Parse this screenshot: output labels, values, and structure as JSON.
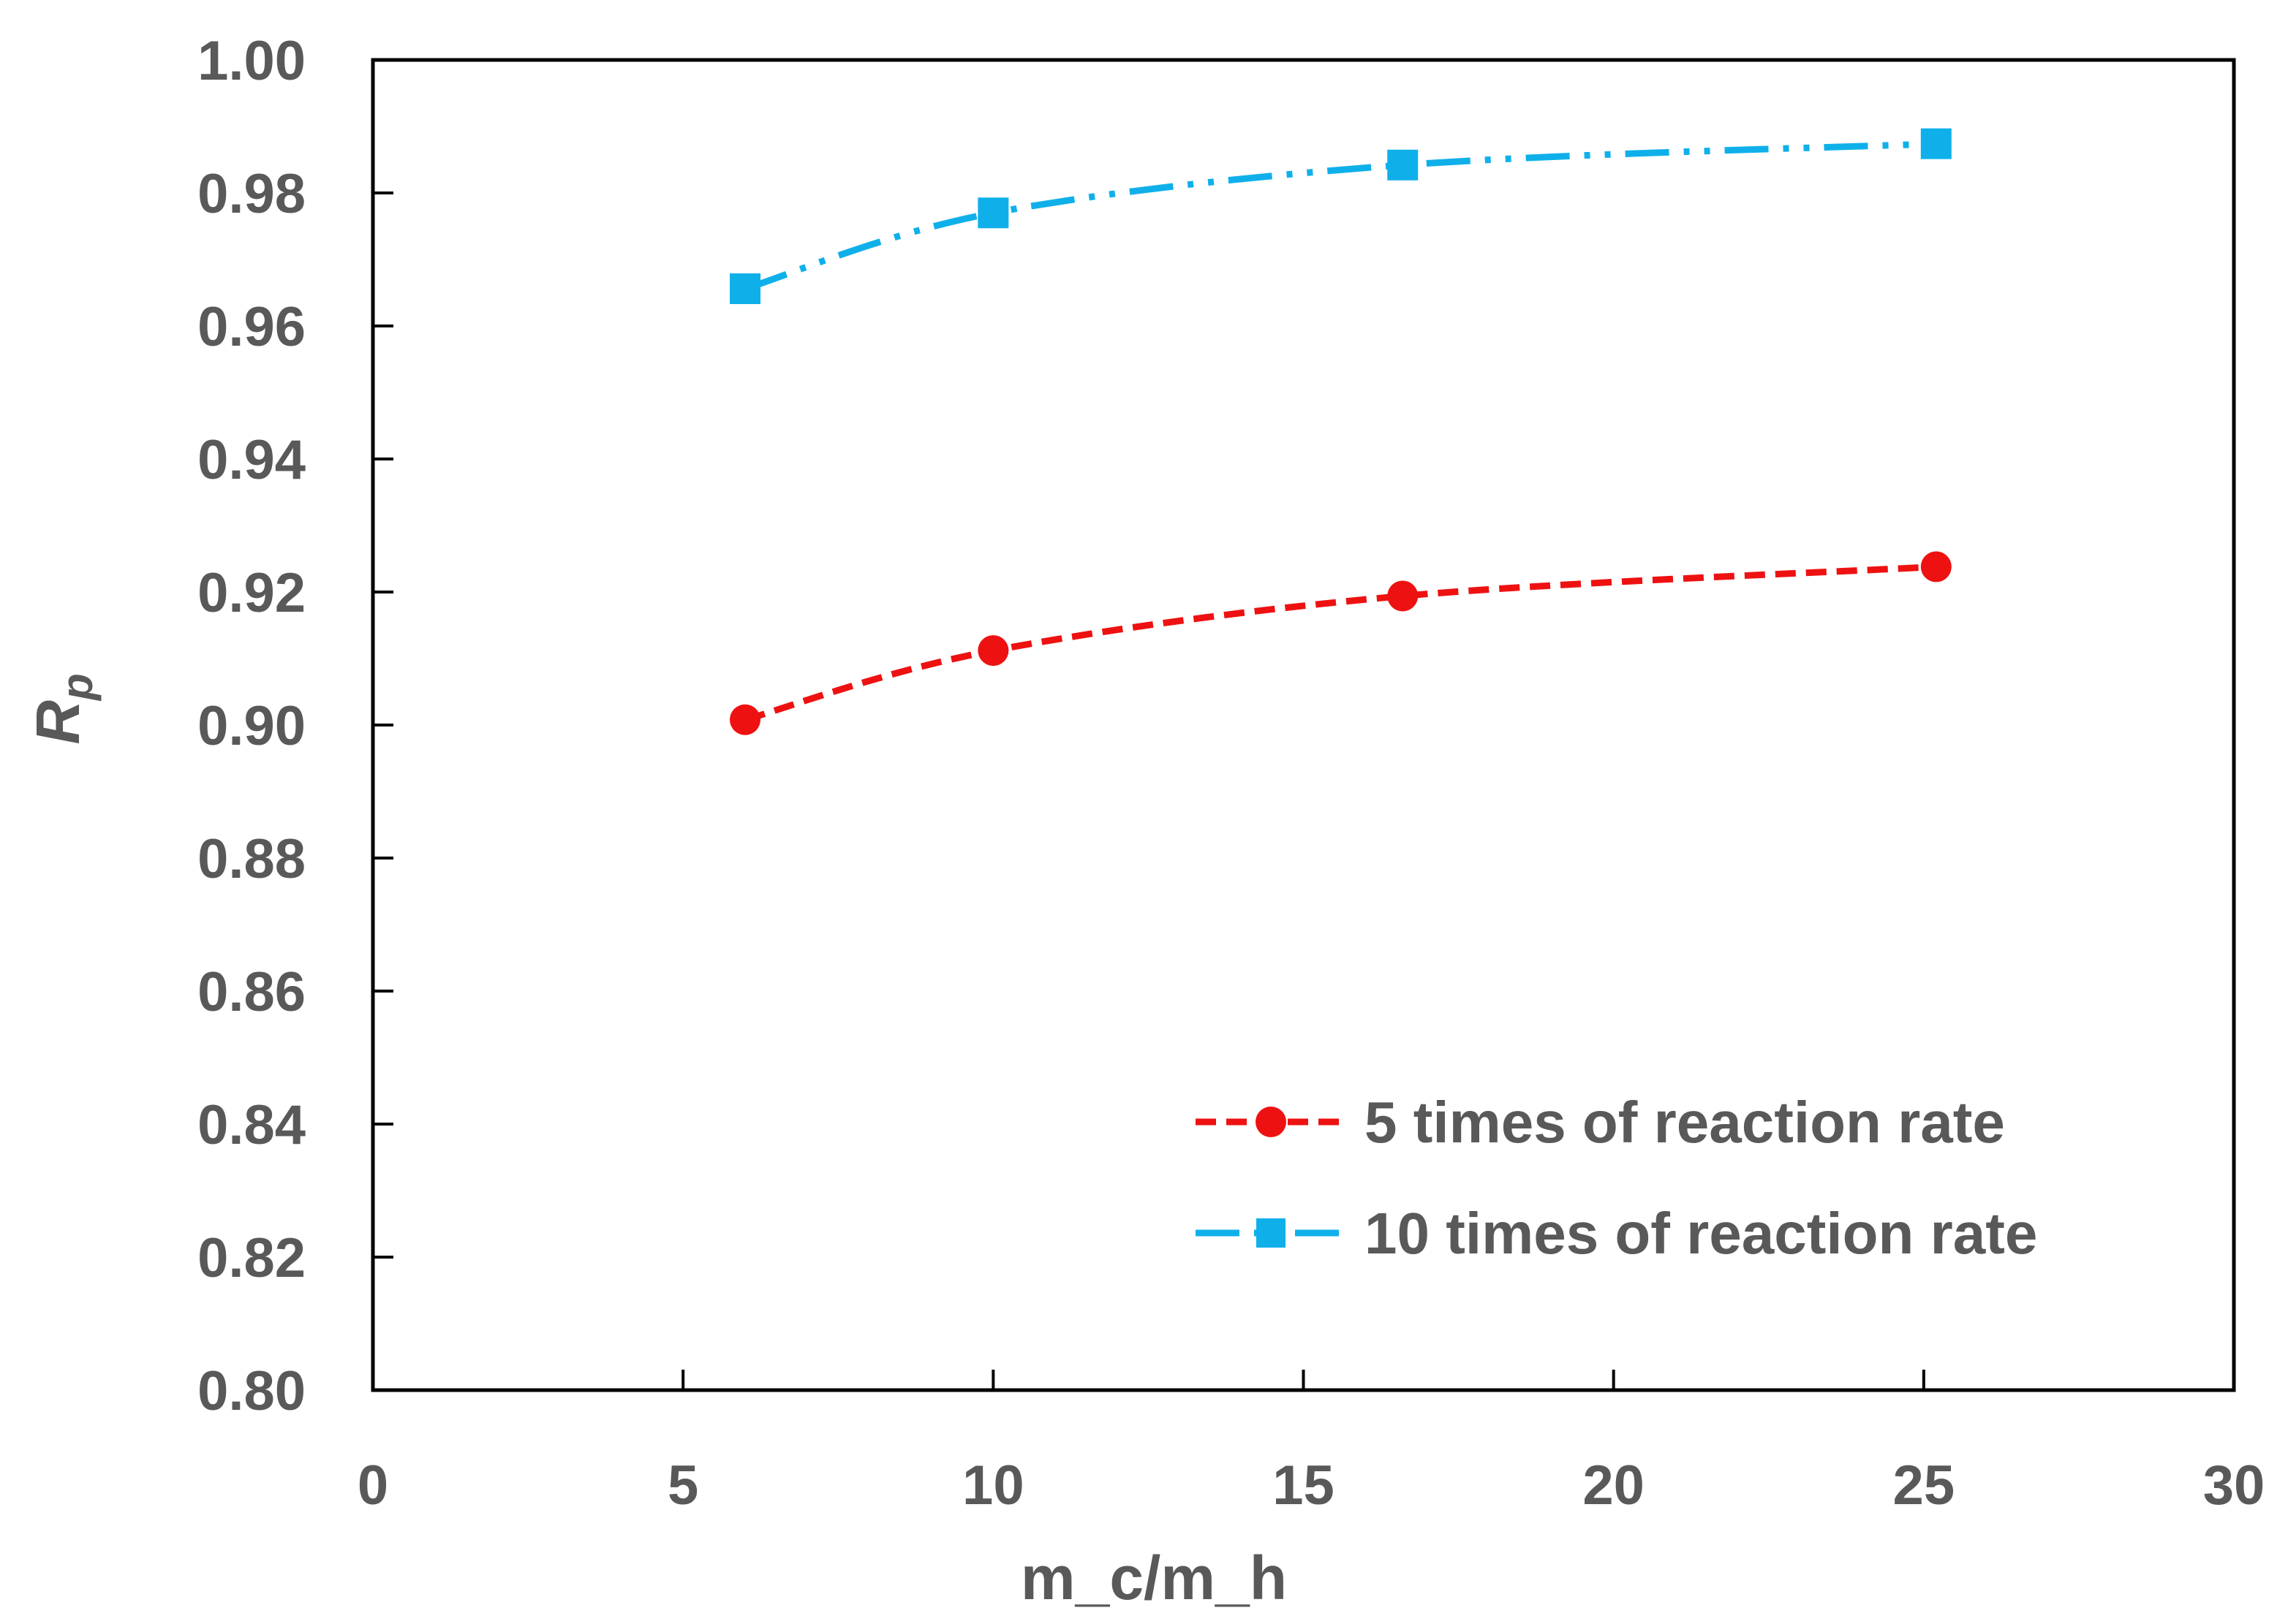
{
  "chart_data": {
    "type": "line",
    "title": "",
    "xlabel": "m_c/m_h",
    "ylabel": "Rp",
    "ylabel_main": "R",
    "ylabel_sub": "p",
    "xlim": [
      0,
      30
    ],
    "ylim": [
      0.8,
      1.0
    ],
    "x_ticks": [
      0,
      5,
      10,
      15,
      20,
      25,
      30
    ],
    "x_tick_labels": [
      "0",
      "5",
      "10",
      "15",
      "20",
      "25",
      "30"
    ],
    "y_ticks": [
      0.8,
      0.82,
      0.84,
      0.86,
      0.88,
      0.9,
      0.92,
      0.94,
      0.96,
      0.98,
      1.0
    ],
    "y_tick_labels": [
      "0.80",
      "0.82",
      "0.84",
      "0.86",
      "0.88",
      "0.90",
      "0.92",
      "0.94",
      "0.96",
      "0.98",
      "1.00"
    ],
    "grid": false,
    "legend_position": "bottom-right",
    "series": [
      {
        "name": "5 times of reaction rate",
        "color": "#ee1111",
        "marker": "circle",
        "line_style": "dashed",
        "x": [
          6,
          10,
          16.6,
          25.2
        ],
        "y": [
          0.9008,
          0.9112,
          0.9194,
          0.9238
        ]
      },
      {
        "name": "10 times of reaction rate",
        "color": "#0fb0ea",
        "marker": "square",
        "line_style": "dash-dot-dot",
        "x": [
          6,
          10,
          16.6,
          25.2
        ],
        "y": [
          0.9656,
          0.977,
          0.9842,
          0.9874
        ]
      }
    ]
  }
}
